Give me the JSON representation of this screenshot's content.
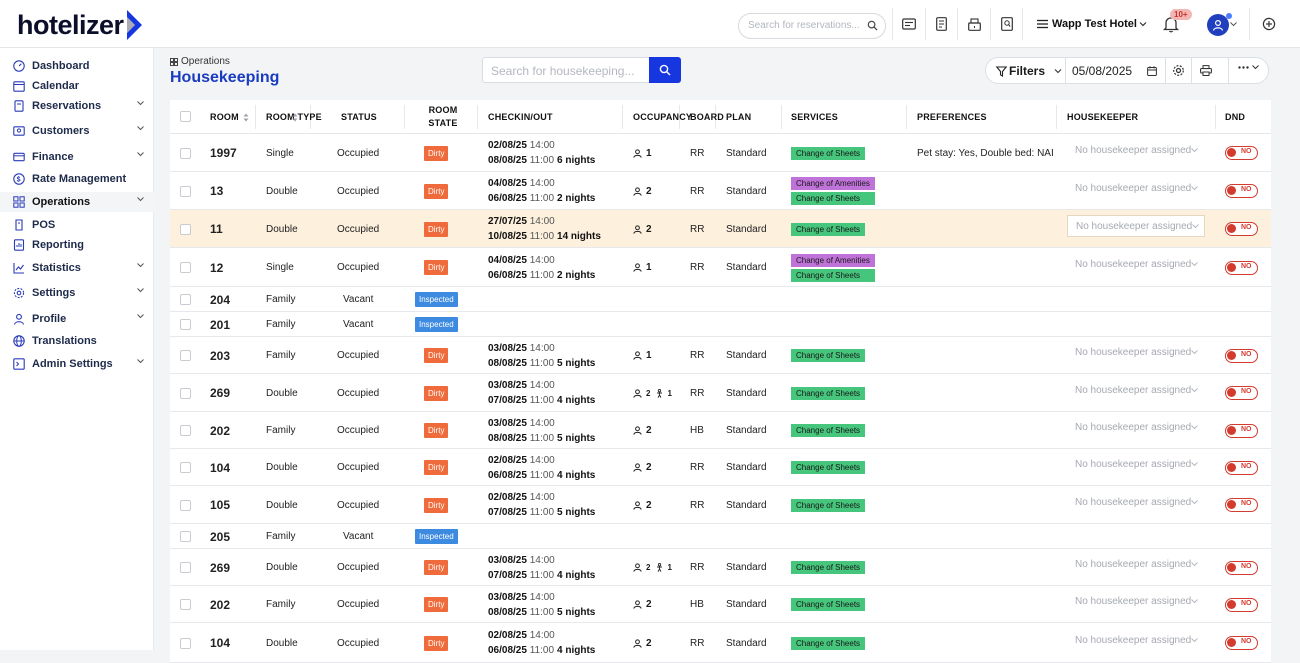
{
  "app": {
    "logo_text": "hotelizer",
    "search_placeholder": "Search for reservations...",
    "hotel_name": "Wapp Test Hotel",
    "notifications_badge": "10+"
  },
  "sidebar": {
    "items": [
      {
        "label": "Dashboard",
        "icon": "dashboard-icon",
        "chevron": false,
        "active": false
      },
      {
        "label": "Calendar",
        "icon": "calendar-icon",
        "chevron": false,
        "active": false
      },
      {
        "label": "Reservations",
        "icon": "reservations-icon",
        "chevron": true,
        "active": false
      },
      {
        "label": "Customers",
        "icon": "customers-icon",
        "chevron": true,
        "active": false
      },
      {
        "label": "Finance",
        "icon": "finance-icon",
        "chevron": true,
        "active": false
      },
      {
        "label": "Rate Management",
        "icon": "rate-icon",
        "chevron": false,
        "active": false
      },
      {
        "label": "Operations",
        "icon": "operations-icon",
        "chevron": true,
        "active": true
      },
      {
        "label": "POS",
        "icon": "pos-icon",
        "chevron": false,
        "active": false
      },
      {
        "label": "Reporting",
        "icon": "reporting-icon",
        "chevron": false,
        "active": false
      },
      {
        "label": "Statistics",
        "icon": "statistics-icon",
        "chevron": true,
        "active": false
      },
      {
        "label": "Settings",
        "icon": "settings-icon",
        "chevron": true,
        "active": false
      },
      {
        "label": "Profile",
        "icon": "profile-icon",
        "chevron": true,
        "active": false
      },
      {
        "label": "Translations",
        "icon": "globe-icon",
        "chevron": false,
        "active": false
      },
      {
        "label": "Admin Settings",
        "icon": "admin-icon",
        "chevron": true,
        "active": false
      }
    ]
  },
  "main": {
    "breadcrumb": "Operations",
    "title": "Housekeeping",
    "search_placeholder": "Search for housekeeping...",
    "filters_label": "Filters",
    "date_value": "05/08/2025"
  },
  "table": {
    "headers": {
      "room": "ROOM",
      "room_type": "ROOM TYPE",
      "status": "STATUS",
      "room_state": "ROOM STATE",
      "checkinout": "CHECKIN/OUT",
      "occupancy": "OCCUPANCY",
      "board": "BOARD",
      "plan": "PLAN",
      "services": "SERVICES",
      "preferences": "PREFERENCES",
      "housekeeper": "HOUSEKEEPER",
      "dnd": "DND"
    },
    "rows": [
      {
        "room": "1997",
        "type": "Single",
        "status": "Occupied",
        "state": "Dirty",
        "in_date": "02/08/25",
        "in_time": "14:00",
        "out_date": "08/08/25",
        "out_time": "11:00",
        "nights": "6 nights",
        "adults": "1",
        "children": "",
        "board": "RR",
        "plan": "Standard",
        "services": [
          "Change of Sheets"
        ],
        "preferences": "Pet stay: Yes, Double bed: NAI",
        "housekeeper": "No housekeeper assigned",
        "dnd": "NO",
        "highlight": false
      },
      {
        "room": "13",
        "type": "Double",
        "status": "Occupied",
        "state": "Dirty",
        "in_date": "04/08/25",
        "in_time": "14:00",
        "out_date": "06/08/25",
        "out_time": "11:00",
        "nights": "2 nights",
        "adults": "2",
        "children": "",
        "board": "RR",
        "plan": "Standard",
        "services": [
          "Change of Amenities",
          "Change of Sheets"
        ],
        "preferences": "",
        "housekeeper": "No housekeeper assigned",
        "dnd": "NO",
        "highlight": false
      },
      {
        "room": "11",
        "type": "Double",
        "status": "Occupied",
        "state": "Dirty",
        "in_date": "27/07/25",
        "in_time": "14:00",
        "out_date": "10/08/25",
        "out_time": "11:00",
        "nights": "14 nights",
        "adults": "2",
        "children": "",
        "board": "RR",
        "plan": "Standard",
        "services": [
          "Change of Sheets"
        ],
        "preferences": "",
        "housekeeper": "No housekeeper assigned",
        "dnd": "NO",
        "highlight": true
      },
      {
        "room": "12",
        "type": "Single",
        "status": "Occupied",
        "state": "Dirty",
        "in_date": "04/08/25",
        "in_time": "14:00",
        "out_date": "06/08/25",
        "out_time": "11:00",
        "nights": "2 nights",
        "adults": "1",
        "children": "",
        "board": "RR",
        "plan": "Standard",
        "services": [
          "Change of Amenities",
          "Change of Sheets"
        ],
        "preferences": "",
        "housekeeper": "No housekeeper assigned",
        "dnd": "NO",
        "highlight": false
      },
      {
        "room": "204",
        "type": "Family",
        "status": "Vacant",
        "state": "Inspected",
        "vacant": true
      },
      {
        "room": "201",
        "type": "Family",
        "status": "Vacant",
        "state": "Inspected",
        "vacant": true
      },
      {
        "room": "203",
        "type": "Family",
        "status": "Occupied",
        "state": "Dirty",
        "in_date": "03/08/25",
        "in_time": "14:00",
        "out_date": "08/08/25",
        "out_time": "11:00",
        "nights": "5 nights",
        "adults": "1",
        "children": "",
        "board": "RR",
        "plan": "Standard",
        "services": [
          "Change of Sheets"
        ],
        "preferences": "",
        "housekeeper": "No housekeeper assigned",
        "dnd": "NO",
        "highlight": false
      },
      {
        "room": "269",
        "type": "Double",
        "status": "Occupied",
        "state": "Dirty",
        "in_date": "03/08/25",
        "in_time": "14:00",
        "out_date": "07/08/25",
        "out_time": "11:00",
        "nights": "4 nights",
        "adults": "2",
        "children": "1",
        "board": "RR",
        "plan": "Standard",
        "services": [
          "Change of Sheets"
        ],
        "preferences": "",
        "housekeeper": "No housekeeper assigned",
        "dnd": "NO",
        "highlight": false
      },
      {
        "room": "202",
        "type": "Family",
        "status": "Occupied",
        "state": "Dirty",
        "in_date": "03/08/25",
        "in_time": "14:00",
        "out_date": "08/08/25",
        "out_time": "11:00",
        "nights": "5 nights",
        "adults": "2",
        "children": "",
        "board": "HB",
        "plan": "Standard",
        "services": [
          "Change of Sheets"
        ],
        "preferences": "",
        "housekeeper": "No housekeeper assigned",
        "dnd": "NO",
        "highlight": false
      },
      {
        "room": "104",
        "type": "Double",
        "status": "Occupied",
        "state": "Dirty",
        "in_date": "02/08/25",
        "in_time": "14:00",
        "out_date": "06/08/25",
        "out_time": "11:00",
        "nights": "4 nights",
        "adults": "2",
        "children": "",
        "board": "RR",
        "plan": "Standard",
        "services": [
          "Change of Sheets"
        ],
        "preferences": "",
        "housekeeper": "No housekeeper assigned",
        "dnd": "NO",
        "highlight": false
      },
      {
        "room": "105",
        "type": "Double",
        "status": "Occupied",
        "state": "Dirty",
        "in_date": "02/08/25",
        "in_time": "14:00",
        "out_date": "07/08/25",
        "out_time": "11:00",
        "nights": "5 nights",
        "adults": "2",
        "children": "",
        "board": "RR",
        "plan": "Standard",
        "services": [
          "Change of Sheets"
        ],
        "preferences": "",
        "housekeeper": "No housekeeper assigned",
        "dnd": "NO",
        "highlight": false
      },
      {
        "room": "205",
        "type": "Family",
        "status": "Vacant",
        "state": "Inspected",
        "vacant": true
      },
      {
        "room": "269",
        "type": "Double",
        "status": "Occupied",
        "state": "Dirty",
        "in_date": "03/08/25",
        "in_time": "14:00",
        "out_date": "07/08/25",
        "out_time": "11:00",
        "nights": "4 nights",
        "adults": "2",
        "children": "1",
        "board": "RR",
        "plan": "Standard",
        "services": [
          "Change of Sheets"
        ],
        "preferences": "",
        "housekeeper": "No housekeeper assigned",
        "dnd": "NO",
        "highlight": false
      },
      {
        "room": "202",
        "type": "Family",
        "status": "Occupied",
        "state": "Dirty",
        "in_date": "03/08/25",
        "in_time": "14:00",
        "out_date": "08/08/25",
        "out_time": "11:00",
        "nights": "5 nights",
        "adults": "2",
        "children": "",
        "board": "HB",
        "plan": "Standard",
        "services": [
          "Change of Sheets"
        ],
        "preferences": "",
        "housekeeper": "No housekeeper assigned",
        "dnd": "NO",
        "highlight": false
      },
      {
        "room": "104",
        "type": "Double",
        "status": "Occupied",
        "state": "Dirty",
        "in_date": "02/08/25",
        "in_time": "14:00",
        "out_date": "06/08/25",
        "out_time": "11:00",
        "nights": "4 nights",
        "adults": "2",
        "children": "",
        "board": "RR",
        "plan": "Standard",
        "services": [
          "Change of Sheets"
        ],
        "preferences": "",
        "housekeeper": "No housekeeper assigned",
        "dnd": "NO",
        "highlight": false
      }
    ]
  },
  "colors": {
    "accent": "#1637e0",
    "title": "#1a3cc0",
    "dirty": "#ef6b3c",
    "inspected": "#3d8be0",
    "sheets": "#46c57c",
    "amenities": "#bf72d7",
    "dnd": "#d33b2f",
    "highlight_row": "#fdf0dd"
  }
}
